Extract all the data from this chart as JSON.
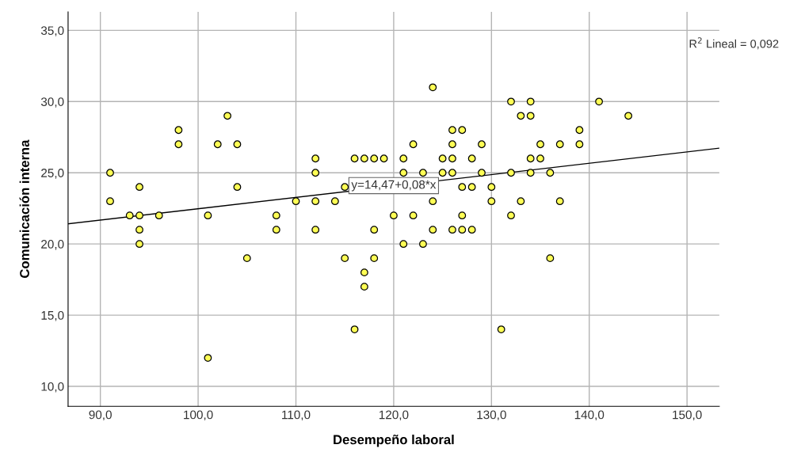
{
  "chart_data": {
    "type": "scatter",
    "xlabel": "Desempeño laboral",
    "ylabel": "Comunicación interna",
    "xlim": [
      86.7,
      153.3
    ],
    "ylim": [
      8.6,
      36.3
    ],
    "xticks": [
      {
        "value": 90,
        "label": "90,0"
      },
      {
        "value": 100,
        "label": "100,0"
      },
      {
        "value": 110,
        "label": "110,0"
      },
      {
        "value": 120,
        "label": "120,0"
      },
      {
        "value": 130,
        "label": "130,0"
      },
      {
        "value": 140,
        "label": "140,0"
      },
      {
        "value": 150,
        "label": "150,0"
      }
    ],
    "yticks": [
      {
        "value": 10,
        "label": "10,0"
      },
      {
        "value": 15,
        "label": "15,0"
      },
      {
        "value": 20,
        "label": "20,0"
      },
      {
        "value": 25,
        "label": "25,0"
      },
      {
        "value": 30,
        "label": "30,0"
      },
      {
        "value": 35,
        "label": "35,0"
      }
    ],
    "grid": true,
    "series": [
      {
        "marker": "circle",
        "color": "#ffff55",
        "x": [
          91,
          91,
          93,
          94,
          94,
          94,
          94,
          96,
          98,
          98,
          101,
          101,
          102,
          103,
          104,
          104,
          105,
          108,
          108,
          110,
          112,
          112,
          112,
          112,
          114,
          115,
          115,
          116,
          116,
          117,
          117,
          117,
          118,
          118,
          118,
          119,
          120,
          121,
          121,
          121,
          122,
          122,
          123,
          123,
          124,
          124,
          124,
          125,
          125,
          126,
          126,
          126,
          126,
          126,
          127,
          127,
          127,
          127,
          128,
          128,
          128,
          129,
          129,
          130,
          130,
          131,
          132,
          132,
          132,
          133,
          133,
          134,
          134,
          134,
          134,
          135,
          135,
          136,
          136,
          137,
          137,
          139,
          139,
          141,
          144
        ],
        "values": [
          25,
          23,
          22,
          24,
          22,
          21,
          20,
          22,
          28,
          27,
          22,
          12,
          27,
          29,
          27,
          24,
          19,
          22,
          21,
          23,
          26,
          25,
          23,
          21,
          23,
          19,
          24,
          26,
          14,
          26,
          18,
          17,
          26,
          21,
          19,
          26,
          22,
          26,
          25,
          20,
          27,
          22,
          25,
          20,
          31,
          23,
          21,
          26,
          25,
          28,
          27,
          26,
          25,
          21,
          28,
          24,
          22,
          21,
          26,
          24,
          21,
          27,
          25,
          24,
          23,
          14,
          30,
          25,
          22,
          29,
          23,
          30,
          29,
          26,
          25,
          27,
          26,
          25,
          19,
          27,
          23,
          28,
          27,
          30,
          29
        ]
      },
      {
        "type": "line",
        "color": "#000000",
        "x": [
          86.7,
          153.3
        ],
        "values": [
          21.41,
          26.73
        ]
      }
    ],
    "annotations": [
      {
        "text": "y=14,47+0,08*x",
        "x": 120,
        "y": 24.1
      },
      "R$^{2}$ Lineal = 0,092"
    ]
  }
}
